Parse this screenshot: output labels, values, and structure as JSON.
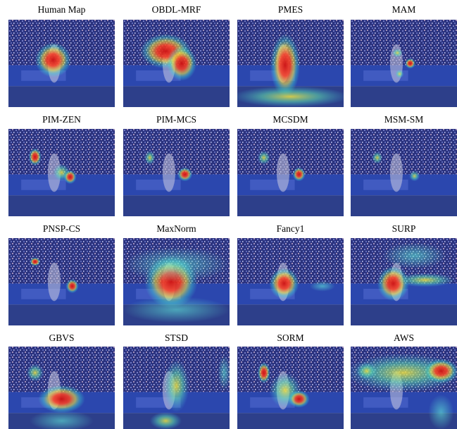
{
  "panels": [
    {
      "label": "Human Map"
    },
    {
      "label": "OBDL-MRF"
    },
    {
      "label": "PMES"
    },
    {
      "label": "MAM"
    },
    {
      "label": "PIM-ZEN"
    },
    {
      "label": "PIM-MCS"
    },
    {
      "label": "MCSDM"
    },
    {
      "label": "MSM-SM"
    },
    {
      "label": "PNSP-CS"
    },
    {
      "label": "MaxNorm"
    },
    {
      "label": "Fancy1"
    },
    {
      "label": "SURP"
    },
    {
      "label": "GBVS"
    },
    {
      "label": "STSD"
    },
    {
      "label": "SORM"
    },
    {
      "label": "AWS"
    }
  ]
}
